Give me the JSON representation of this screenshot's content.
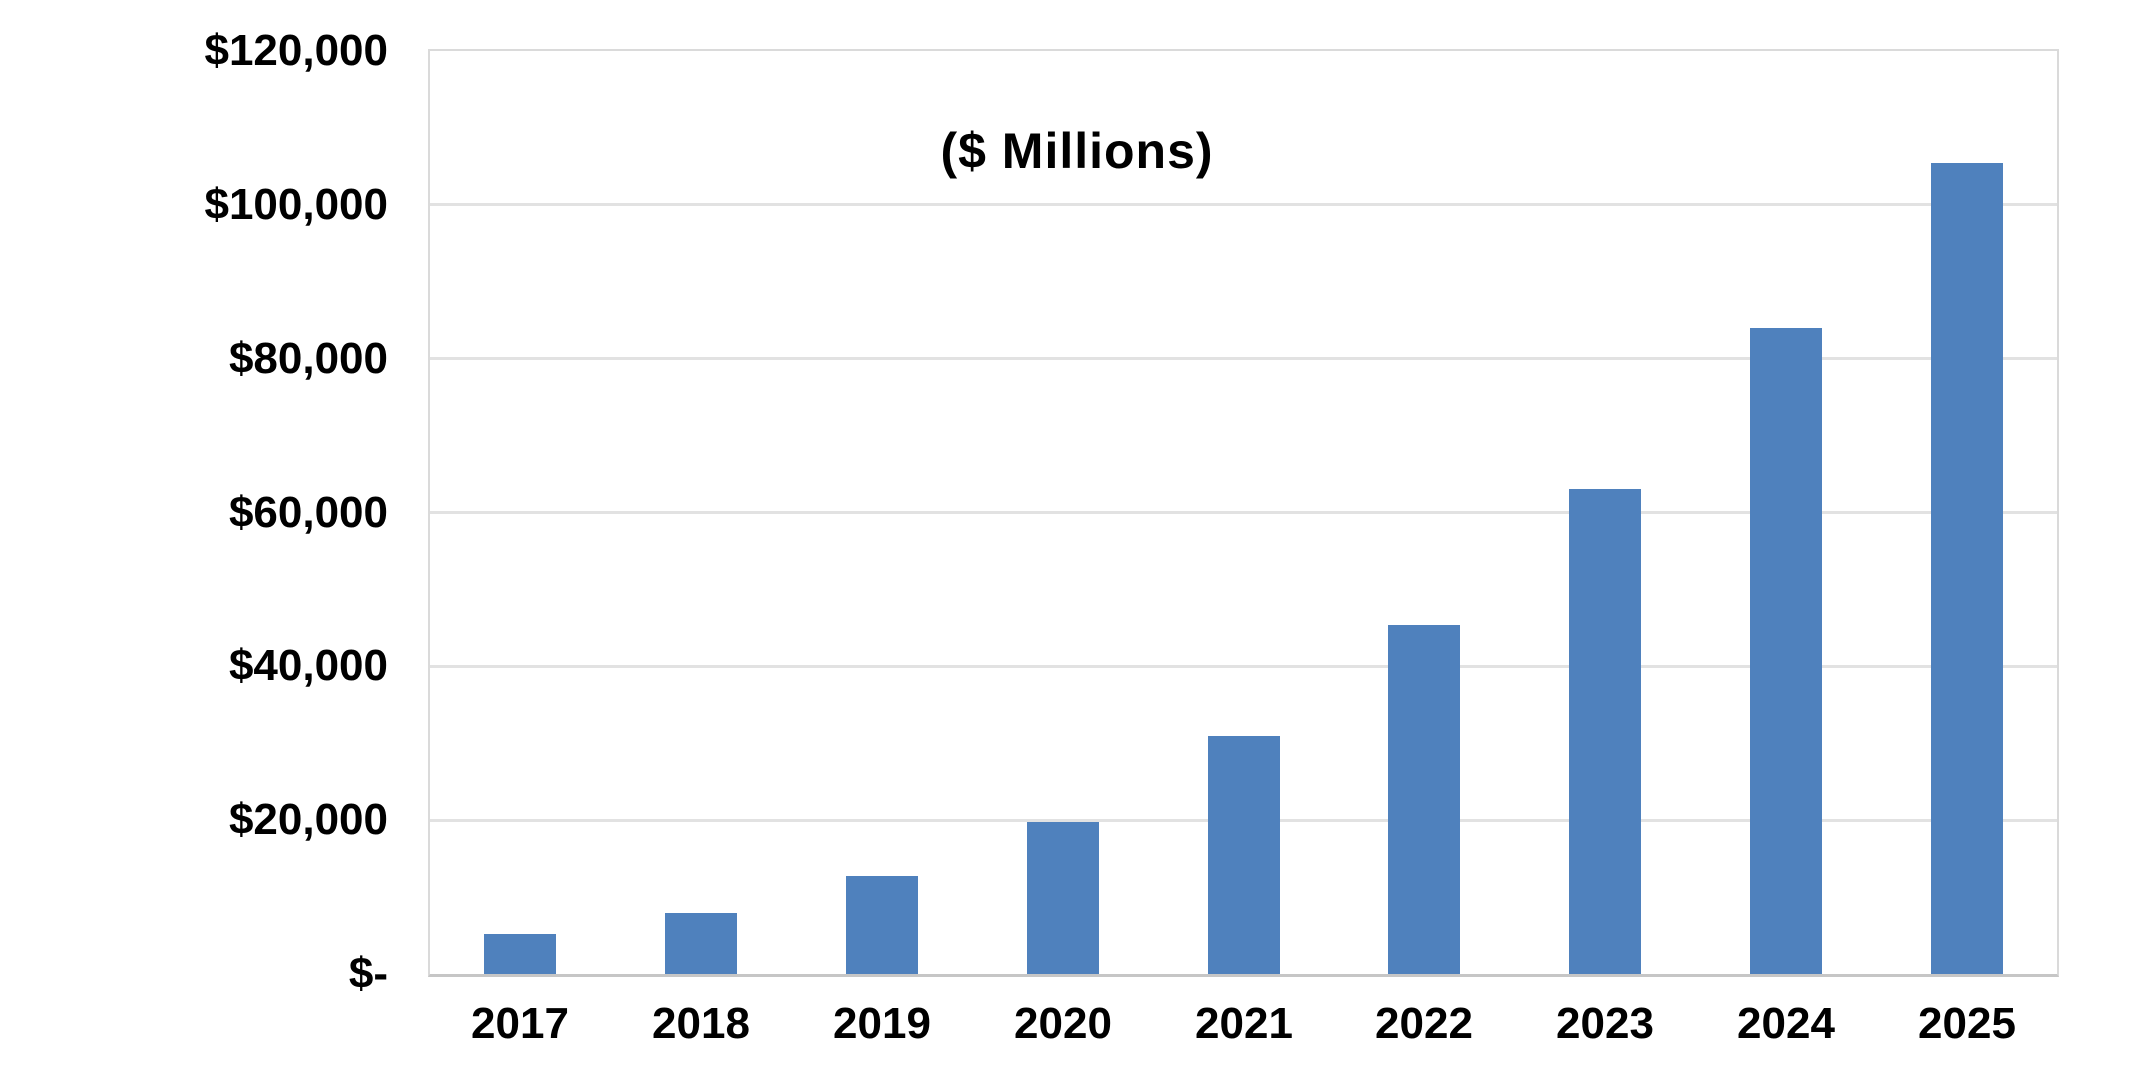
{
  "chart_data": {
    "type": "bar",
    "title": "($ Millions)",
    "categories": [
      "2017",
      "2018",
      "2019",
      "2020",
      "2021",
      "2022",
      "2023",
      "2024",
      "2025"
    ],
    "values": [
      5200,
      7900,
      12800,
      19700,
      30900,
      45400,
      63100,
      84000,
      105500
    ],
    "xlabel": "",
    "ylabel": "",
    "ylim": [
      0,
      120000
    ],
    "ytick_values": [
      0,
      20000,
      40000,
      60000,
      80000,
      100000,
      120000
    ],
    "ytick_labels": [
      "$-",
      "$20,000",
      "$40,000",
      "$60,000",
      "$80,000",
      "$100,000",
      "$120,000"
    ],
    "legend_position": "none",
    "grid": "horizontal",
    "colors": {
      "bar": "#4f81bd",
      "gridline": "#e2e2e2",
      "plot_border": "#dadada",
      "axis_line": "#c6c6c6",
      "text": "#000000",
      "background": "#ffffff"
    }
  }
}
